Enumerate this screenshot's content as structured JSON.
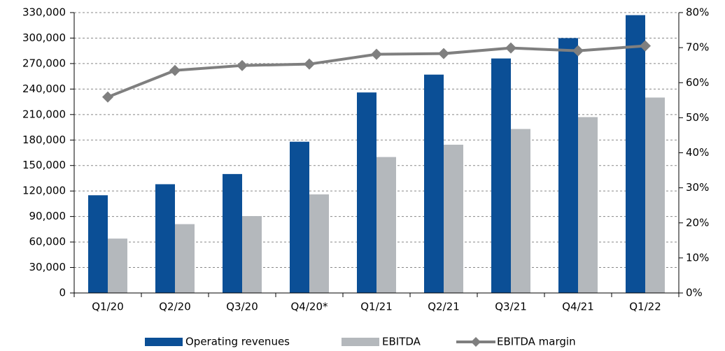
{
  "chart_data": {
    "type": "bar",
    "categories": [
      "Q1/20",
      "Q2/20",
      "Q3/20",
      "Q4/20*",
      "Q1/21",
      "Q2/21",
      "Q3/21",
      "Q4/21",
      "Q1/22"
    ],
    "series": [
      {
        "name": "Operating revenues",
        "color": "#0b4f96",
        "values": [
          115000,
          128000,
          140000,
          178000,
          236000,
          257000,
          276000,
          300000,
          327000
        ]
      },
      {
        "name": "EBITDA",
        "color": "#b4b8bc",
        "values": [
          64000,
          81000,
          90500,
          116000,
          160000,
          174500,
          193000,
          207000,
          230000
        ]
      },
      {
        "name": "EBITDA margin",
        "color": "#7f7f7f",
        "type": "line",
        "axis": "y2",
        "values": [
          55.9,
          63.5,
          64.9,
          65.3,
          68.1,
          68.3,
          69.9,
          69.1,
          70.5
        ]
      }
    ],
    "ylim": [
      0,
      330000
    ],
    "yticks": [
      0,
      {
        "value": 30000,
        "label": "30,000"
      },
      {
        "value": 60000,
        "label": "60,000"
      },
      {
        "value": 90000,
        "label": "90,000"
      },
      {
        "value": 120000,
        "label": "120,000"
      },
      {
        "value": 150000,
        "label": "150,000"
      },
      {
        "value": 180000,
        "label": "180,000"
      },
      {
        "value": 210000,
        "label": "210,000"
      },
      {
        "value": 240000,
        "label": "240,000"
      },
      {
        "value": 270000,
        "label": "270,000"
      },
      {
        "value": 300000,
        "label": "300,000"
      },
      {
        "value": 330000,
        "label": "330,000"
      }
    ],
    "y2lim": [
      0,
      80
    ],
    "y2ticks": [
      {
        "value": 0,
        "label": "0%"
      },
      {
        "value": 10,
        "label": "10%"
      },
      {
        "value": 20,
        "label": "20%"
      },
      {
        "value": 30,
        "label": "30%"
      },
      {
        "value": 40,
        "label": "40%"
      },
      {
        "value": 50,
        "label": "50%"
      },
      {
        "value": 60,
        "label": "60%"
      },
      {
        "value": 70,
        "label": "70%"
      },
      {
        "value": 80,
        "label": "80%"
      }
    ],
    "grid": true,
    "legend": "bottom"
  }
}
